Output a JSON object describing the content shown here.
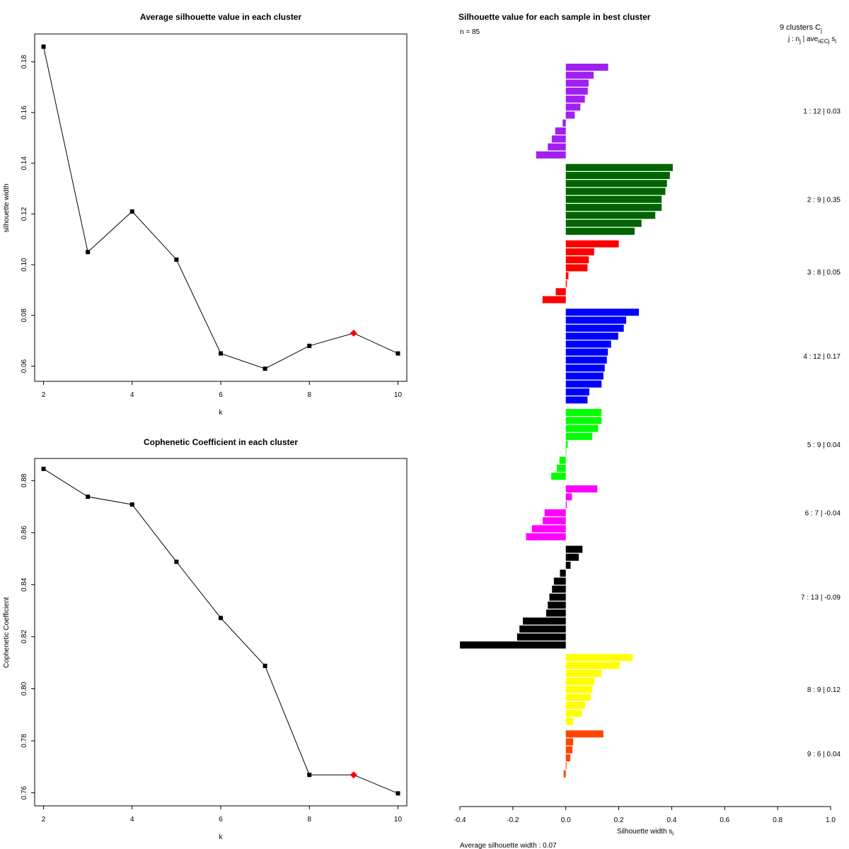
{
  "chart_data": [
    {
      "type": "line",
      "title": "Average silhouette value in each cluster",
      "xlabel": "k",
      "ylabel": "silhouette width",
      "x": [
        2,
        3,
        4,
        5,
        6,
        7,
        8,
        9,
        10
      ],
      "y": [
        0.186,
        0.105,
        0.121,
        0.102,
        0.065,
        0.059,
        0.068,
        0.073,
        0.065
      ],
      "highlight_x": 9,
      "xlim": [
        1.8,
        10.2
      ],
      "ylim": [
        0.054,
        0.191
      ],
      "xticks": [
        2,
        4,
        6,
        8,
        10
      ],
      "xtick_labels": [
        "2",
        "4",
        "6",
        "8",
        "10"
      ],
      "yticks": [
        0.06,
        0.08,
        0.1,
        0.12,
        0.14,
        0.16,
        0.18
      ],
      "ytick_labels": [
        "0.06",
        "0.08",
        "0.10",
        "0.12",
        "0.14",
        "0.16",
        "0.18"
      ]
    },
    {
      "type": "line",
      "title": "Cophenetic Coefficient in each cluster",
      "xlabel": "k",
      "ylabel": "Cophenetic Coefficient",
      "x": [
        2,
        3,
        4,
        5,
        6,
        7,
        8,
        9,
        10
      ],
      "y": [
        0.8845,
        0.8738,
        0.8708,
        0.8488,
        0.8272,
        0.8088,
        0.7669,
        0.7669,
        0.7598
      ],
      "highlight_x": 9,
      "xlim": [
        1.8,
        10.2
      ],
      "ylim": [
        0.755,
        0.8885
      ],
      "xticks": [
        2,
        4,
        6,
        8,
        10
      ],
      "xtick_labels": [
        "2",
        "4",
        "6",
        "8",
        "10"
      ],
      "yticks": [
        0.76,
        0.78,
        0.8,
        0.82,
        0.84,
        0.86,
        0.88
      ],
      "ytick_labels": [
        "0.76",
        "0.78",
        "0.80",
        "0.82",
        "0.84",
        "0.86",
        "0.88"
      ]
    },
    {
      "type": "bar",
      "orientation": "horizontal",
      "title": "Silhouette value for each sample in best cluster",
      "n_label": "n = 85",
      "header_line1": "9  clusters  C",
      "header_sub1": "j",
      "header_line2": "j :  n",
      "header_sub2": "j",
      "header_line2b": " | ave",
      "header_sub2b": "i∈Cj",
      "header_line2c": " s",
      "header_sub2c": "i",
      "xlabel": "Silhouette width s",
      "xlabel_sub": "i",
      "footer": "Average silhouette width :  0.07",
      "xlim": [
        -0.4,
        1.0
      ],
      "xticks": [
        -0.4,
        -0.2,
        0.0,
        0.2,
        0.4,
        0.6,
        0.8,
        1.0
      ],
      "xtick_labels": [
        "-0.4",
        "-0.2",
        "0.0",
        "0.2",
        "0.4",
        "0.6",
        "0.8",
        "1.0"
      ],
      "clusters": [
        {
          "label": "1 :   12  |  0.03",
          "color": "#a020f0",
          "values": [
            0.16,
            0.105,
            0.086,
            0.083,
            0.072,
            0.055,
            0.034,
            -0.012,
            -0.04,
            -0.053,
            -0.068,
            -0.112
          ]
        },
        {
          "label": "2 :   9  |  0.35",
          "color": "#006400",
          "values": [
            0.404,
            0.393,
            0.382,
            0.376,
            0.362,
            0.362,
            0.338,
            0.286,
            0.26
          ]
        },
        {
          "label": "3 :   8  |  0.05",
          "color": "#ff0000",
          "values": [
            0.2,
            0.107,
            0.087,
            0.082,
            0.01,
            0.004,
            -0.038,
            -0.088
          ]
        },
        {
          "label": "4 :   12  |  0.17",
          "color": "#0000ff",
          "values": [
            0.276,
            0.228,
            0.219,
            0.198,
            0.171,
            0.159,
            0.155,
            0.147,
            0.142,
            0.135,
            0.089,
            0.082
          ]
        },
        {
          "label": "5 :   9  |  0.04",
          "color": "#00ff00",
          "values": [
            0.135,
            0.135,
            0.122,
            0.1,
            0.007,
            0.0,
            -0.024,
            -0.034,
            -0.055
          ]
        },
        {
          "label": "6 :   7  |  -0.04",
          "color": "#ff00ff",
          "values": [
            0.119,
            0.023,
            0.004,
            -0.08,
            -0.087,
            -0.128,
            -0.15
          ]
        },
        {
          "label": "7 :   13  |  -0.09",
          "color": "#000000",
          "values": [
            0.063,
            0.049,
            0.018,
            -0.022,
            -0.045,
            -0.052,
            -0.062,
            -0.068,
            -0.074,
            -0.162,
            -0.175,
            -0.184,
            -0.4
          ]
        },
        {
          "label": "8 :   9  |  0.12",
          "color": "#ffff00",
          "values": [
            0.253,
            0.203,
            0.135,
            0.108,
            0.1,
            0.094,
            0.073,
            0.061,
            0.028
          ]
        },
        {
          "label": "9 :   6  |  0.04",
          "color": "#ff4500",
          "values": [
            0.142,
            0.028,
            0.025,
            0.017,
            0.003,
            -0.008
          ]
        }
      ]
    }
  ]
}
